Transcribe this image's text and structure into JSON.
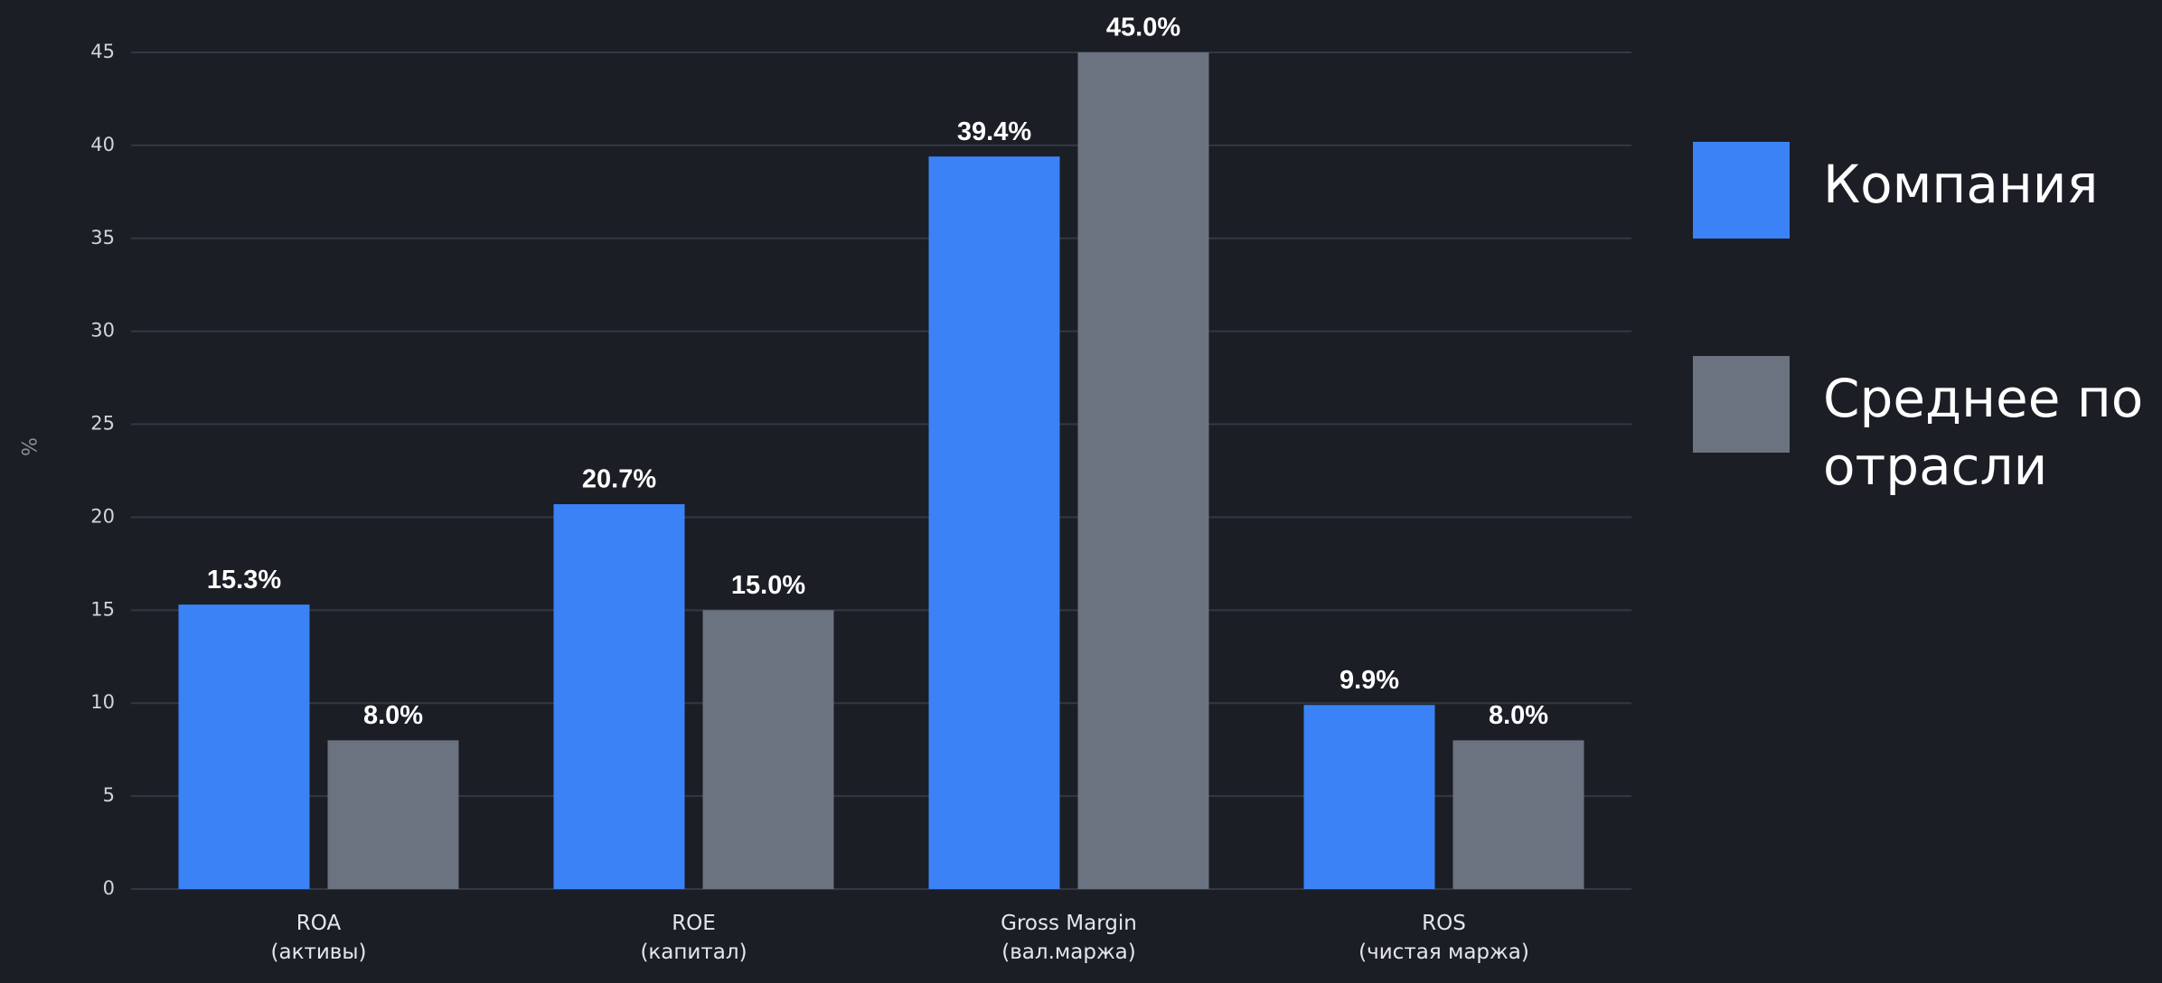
{
  "chart_data": {
    "type": "bar",
    "y_label": "%",
    "categories": [
      "ROA\n(активы)",
      "ROE\n(капитал)",
      "Gross Margin\n(вал.маржа)",
      "ROS\n(чистая маржа)"
    ],
    "series": [
      {
        "name": "Компания",
        "color": "#3b82f6",
        "values": [
          15.3,
          20.7,
          39.4,
          9.9
        ],
        "value_labels": [
          "15.3%",
          "20.7%",
          "39.4%",
          "9.9%"
        ]
      },
      {
        "name": "Среднее по отрасли",
        "color": "#6b7280",
        "values": [
          8.0,
          15.0,
          45.0,
          8.0
        ],
        "value_labels": [
          "8.0%",
          "15.0%",
          "45.0%",
          "8.0%"
        ]
      }
    ],
    "ylim": [
      0,
      45
    ],
    "yticks": [
      0,
      5,
      10,
      15,
      20,
      25,
      30,
      35,
      40,
      45
    ],
    "grid": true,
    "legend": "right"
  }
}
